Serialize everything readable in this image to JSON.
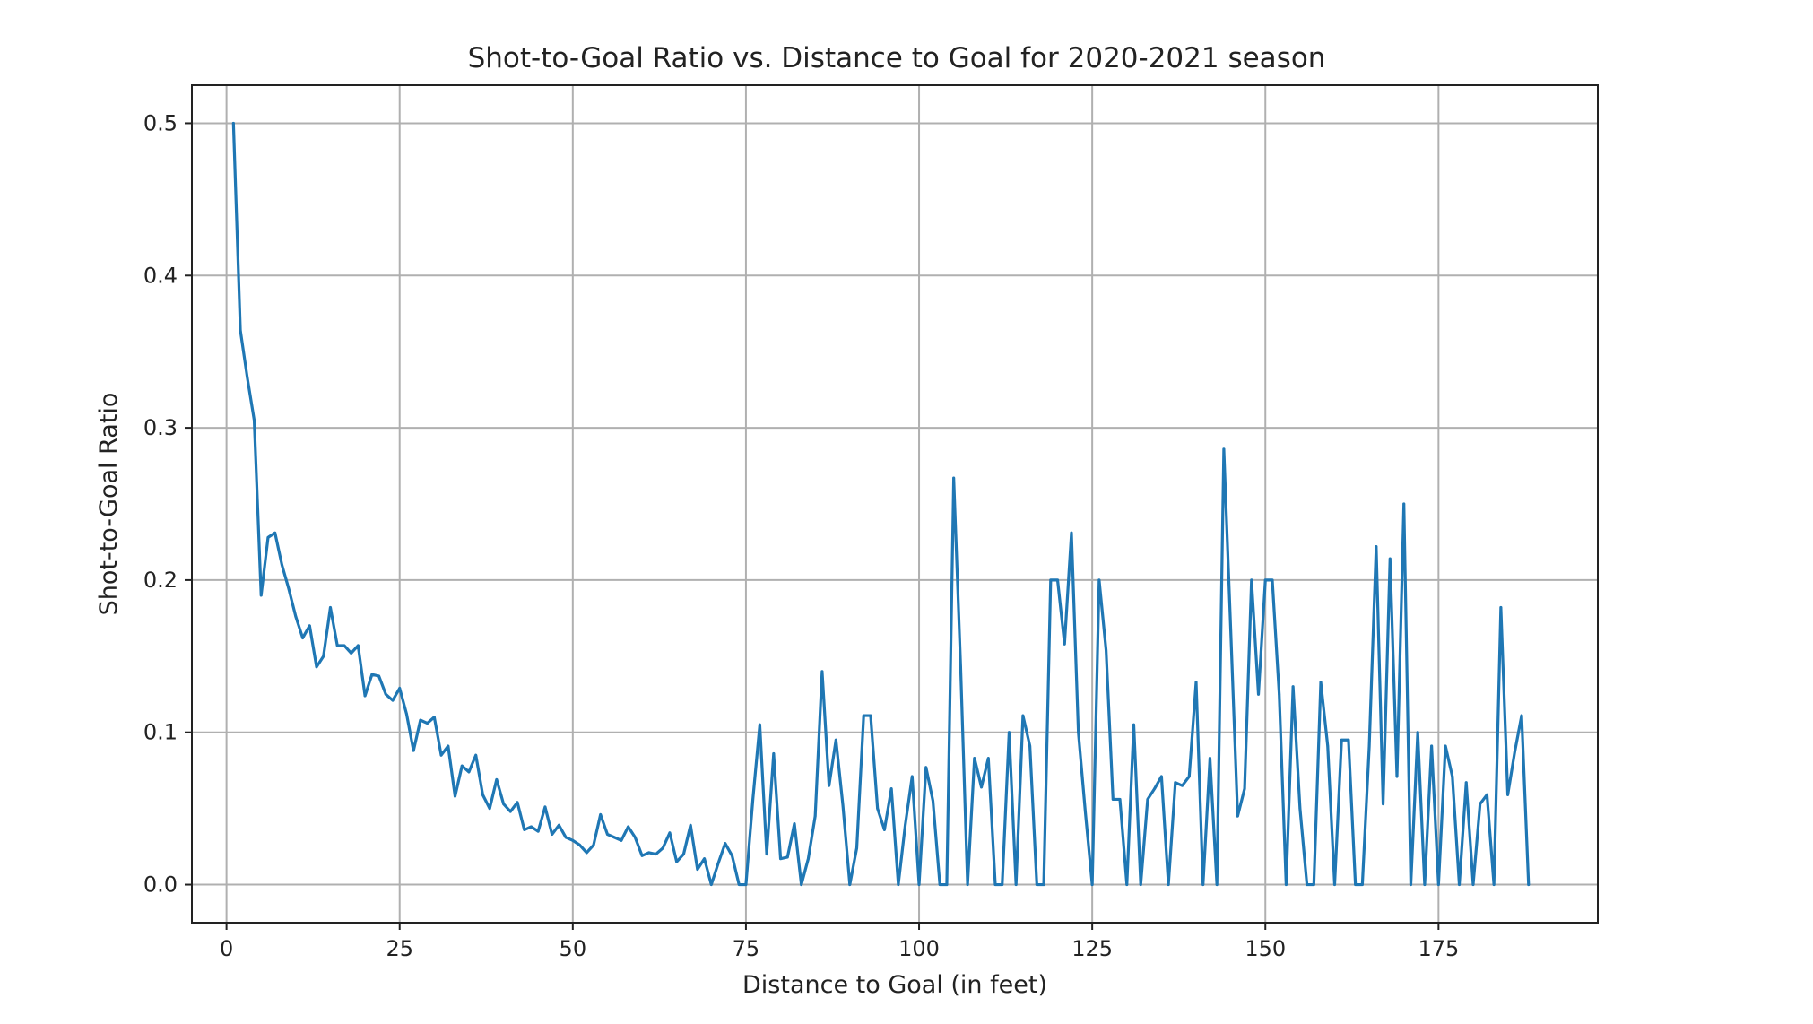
{
  "chart_data": {
    "type": "line",
    "title": "Shot-to-Goal Ratio vs. Distance to Goal for 2020-2021 season",
    "xlabel": "Distance to Goal (in feet)",
    "ylabel": "Shot-to-Goal Ratio",
    "xlim": [
      -5,
      198
    ],
    "ylim": [
      -0.025,
      0.525
    ],
    "xticks": [
      0,
      25,
      50,
      75,
      100,
      125,
      150,
      175
    ],
    "yticks": [
      0.0,
      0.1,
      0.2,
      0.3,
      0.4,
      0.5
    ],
    "xtick_labels": [
      "0",
      "25",
      "50",
      "75",
      "100",
      "125",
      "150",
      "175"
    ],
    "ytick_labels": [
      "0.0",
      "0.1",
      "0.2",
      "0.3",
      "0.4",
      "0.5"
    ],
    "grid": true,
    "series": [
      {
        "color": "#1f77b4",
        "x": [
          1,
          2,
          3,
          4,
          5,
          6,
          7,
          8,
          9,
          10,
          11,
          12,
          13,
          14,
          15,
          16,
          17,
          18,
          19,
          20,
          21,
          22,
          23,
          24,
          25,
          26,
          27,
          28,
          29,
          30,
          31,
          32,
          33,
          34,
          35,
          36,
          37,
          38,
          39,
          40,
          41,
          42,
          43,
          44,
          45,
          46,
          47,
          48,
          49,
          50,
          51,
          52,
          53,
          54,
          55,
          56,
          57,
          58,
          59,
          60,
          61,
          62,
          63,
          64,
          65,
          66,
          67,
          68,
          69,
          70,
          71,
          72,
          73,
          74,
          75,
          76,
          77,
          78,
          79,
          80,
          81,
          82,
          83,
          84,
          85,
          86,
          87,
          88,
          89,
          90,
          91,
          92,
          93,
          94,
          95,
          96,
          97,
          98,
          99,
          100,
          101,
          102,
          103,
          104,
          105,
          106,
          107,
          108,
          109,
          110,
          111,
          112,
          113,
          114,
          115,
          116,
          117,
          118,
          119,
          120,
          121,
          122,
          123,
          124,
          125,
          126,
          127,
          128,
          129,
          130,
          131,
          132,
          133,
          134,
          135,
          136,
          137,
          138,
          139,
          140,
          141,
          142,
          143,
          144,
          145,
          146,
          147,
          148,
          149,
          150,
          151,
          152,
          153,
          154,
          155,
          156,
          157,
          158,
          159,
          160,
          161,
          162,
          163,
          164,
          165,
          166,
          167,
          168,
          169,
          170,
          171,
          172,
          173,
          174,
          175,
          176,
          177,
          178,
          179,
          180,
          181,
          182,
          183,
          184,
          185,
          186,
          187,
          188
        ],
        "y": [
          0.5,
          0.364,
          0.333,
          0.305,
          0.19,
          0.228,
          0.231,
          0.21,
          0.194,
          0.176,
          0.162,
          0.17,
          0.143,
          0.15,
          0.182,
          0.157,
          0.157,
          0.152,
          0.157,
          0.124,
          0.138,
          0.137,
          0.125,
          0.121,
          0.129,
          0.112,
          0.088,
          0.108,
          0.106,
          0.11,
          0.085,
          0.091,
          0.058,
          0.078,
          0.074,
          0.085,
          0.059,
          0.05,
          0.069,
          0.053,
          0.048,
          0.054,
          0.036,
          0.038,
          0.035,
          0.051,
          0.033,
          0.039,
          0.031,
          0.029,
          0.026,
          0.021,
          0.026,
          0.046,
          0.033,
          0.031,
          0.029,
          0.038,
          0.031,
          0.019,
          0.021,
          0.02,
          0.024,
          0.034,
          0.015,
          0.02,
          0.039,
          0.01,
          0.017,
          0.0,
          0.014,
          0.027,
          0.019,
          0.0,
          0.0,
          0.056,
          0.105,
          0.02,
          0.086,
          0.017,
          0.018,
          0.04,
          0.0,
          0.017,
          0.045,
          0.14,
          0.065,
          0.095,
          0.052,
          0.0,
          0.024,
          0.111,
          0.111,
          0.05,
          0.036,
          0.063,
          0.0,
          0.039,
          0.071,
          0.0,
          0.077,
          0.055,
          0.0,
          0.0,
          0.267,
          0.143,
          0.0,
          0.083,
          0.064,
          0.083,
          0.0,
          0.0,
          0.1,
          0.0,
          0.111,
          0.091,
          0.0,
          0.0,
          0.2,
          0.2,
          0.158,
          0.231,
          0.1,
          0.048,
          0.0,
          0.2,
          0.154,
          0.056,
          0.056,
          0.0,
          0.105,
          0.0,
          0.056,
          0.063,
          0.071,
          0.0,
          0.067,
          0.065,
          0.071,
          0.133,
          0.0,
          0.083,
          0.0,
          0.286,
          0.167,
          0.045,
          0.063,
          0.2,
          0.125,
          0.2,
          0.2,
          0.125,
          0.0,
          0.13,
          0.05,
          0.0,
          0.0,
          0.133,
          0.091,
          0.0,
          0.095,
          0.095,
          0.0,
          0.0,
          0.091,
          0.222,
          0.053,
          0.214,
          0.071,
          0.25,
          0.0,
          0.1,
          0.0,
          0.091,
          0.0,
          0.091,
          0.071,
          0.0,
          0.067,
          0.0,
          0.053,
          0.059,
          0.0,
          0.182,
          0.059,
          0.087,
          0.111,
          0.0
        ]
      }
    ]
  }
}
